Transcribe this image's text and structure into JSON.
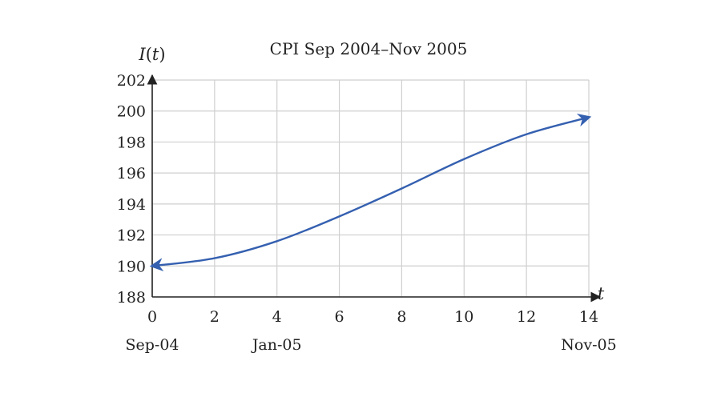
{
  "chart_data": {
    "type": "line",
    "title": "CPI Sep 2004–Nov 2005",
    "ylabel": "I(t)",
    "xlabel": "t",
    "xlim": [
      0,
      14
    ],
    "ylim": [
      188,
      202
    ],
    "x_ticks": [
      0,
      2,
      4,
      6,
      8,
      10,
      12,
      14
    ],
    "y_ticks": [
      188,
      190,
      192,
      194,
      196,
      198,
      200,
      202
    ],
    "x_tick_labels": [
      "0",
      "2",
      "4",
      "6",
      "8",
      "10",
      "12",
      "14"
    ],
    "y_tick_labels": [
      "188",
      "190",
      "192",
      "194",
      "196",
      "198",
      "200",
      "202"
    ],
    "date_labels": [
      {
        "x": 0,
        "label": "Sep-04"
      },
      {
        "x": 4,
        "label": "Jan-05"
      },
      {
        "x": 14,
        "label": "Nov-05"
      }
    ],
    "grid": true,
    "series": [
      {
        "color": "#3560b0",
        "x": [
          0,
          2,
          4,
          6,
          8,
          10,
          12,
          14
        ],
        "y": [
          190.0,
          190.5,
          191.6,
          193.2,
          195.0,
          196.9,
          198.5,
          199.6
        ],
        "arrows": "both"
      }
    ]
  }
}
